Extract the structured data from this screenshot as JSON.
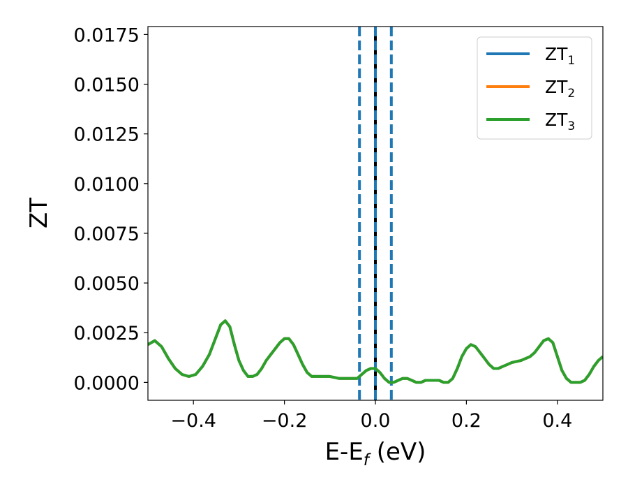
{
  "chart_data": {
    "type": "line",
    "xlabel": "E-E",
    "xlabel_subscript": "f",
    "xlabel_unit": " (eV)",
    "ylabel": "ZT",
    "xlim": [
      -0.5,
      0.5
    ],
    "ylim": [
      -0.0009,
      0.0179
    ],
    "x_ticks": [
      -0.4,
      -0.2,
      0.0,
      0.2,
      0.4
    ],
    "x_tick_labels": [
      "−0.4",
      "−0.2",
      "0.0",
      "0.2",
      "0.4"
    ],
    "y_ticks": [
      0.0,
      0.0025,
      0.005,
      0.0075,
      0.01,
      0.0125,
      0.015,
      0.0175
    ],
    "y_tick_labels": [
      "0.0000",
      "0.0025",
      "0.0050",
      "0.0075",
      "0.0100",
      "0.0125",
      "0.0150",
      "0.0175"
    ],
    "grid": false,
    "legend_position": "top-right",
    "vertical_lines": [
      {
        "x": -0.035,
        "style": "dashed",
        "color": "#1f77b4"
      },
      {
        "x": 0.0,
        "style": "solid",
        "color": "#000000"
      },
      {
        "x": 0.0,
        "style": "dashed",
        "color": "#1f77b4"
      },
      {
        "x": 0.035,
        "style": "dashed",
        "color": "#1f77b4"
      }
    ],
    "series": [
      {
        "name": "ZT",
        "subscript": "1",
        "color": "#1f77b4",
        "x": [
          -0.5,
          -0.485,
          -0.47,
          -0.455,
          -0.44,
          -0.425,
          -0.41,
          -0.395,
          -0.38,
          -0.365,
          -0.35,
          -0.34,
          -0.33,
          -0.32,
          -0.31,
          -0.3,
          -0.29,
          -0.28,
          -0.27,
          -0.26,
          -0.25,
          -0.24,
          -0.23,
          -0.22,
          -0.21,
          -0.2,
          -0.19,
          -0.18,
          -0.17,
          -0.16,
          -0.15,
          -0.14,
          -0.13,
          -0.12,
          -0.1,
          -0.08,
          -0.06,
          -0.04,
          -0.03,
          -0.02,
          -0.01,
          0.0,
          0.01,
          0.02,
          0.03,
          0.04,
          0.05,
          0.06,
          0.07,
          0.08,
          0.09,
          0.1,
          0.11,
          0.12,
          0.13,
          0.14,
          0.15,
          0.16,
          0.17,
          0.18,
          0.19,
          0.2,
          0.21,
          0.22,
          0.23,
          0.24,
          0.25,
          0.26,
          0.27,
          0.28,
          0.29,
          0.3,
          0.32,
          0.34,
          0.35,
          0.36,
          0.37,
          0.38,
          0.39,
          0.4,
          0.41,
          0.42,
          0.43,
          0.44,
          0.45,
          0.46,
          0.47,
          0.48,
          0.49,
          0.5
        ],
        "y": [
          0.0019,
          0.0021,
          0.0018,
          0.0012,
          0.0007,
          0.0004,
          0.0003,
          0.0004,
          0.0008,
          0.0014,
          0.0023,
          0.0029,
          0.0031,
          0.0028,
          0.0019,
          0.0011,
          0.0006,
          0.0003,
          0.0003,
          0.0004,
          0.0007,
          0.0011,
          0.0014,
          0.0017,
          0.002,
          0.0022,
          0.0022,
          0.0019,
          0.0014,
          0.0009,
          0.0005,
          0.0003,
          0.0003,
          0.0003,
          0.0003,
          0.0002,
          0.0002,
          0.0002,
          0.0004,
          0.0006,
          0.0007,
          0.0007,
          0.0005,
          0.0002,
          0.0,
          0.0,
          0.0001,
          0.0002,
          0.0002,
          0.0001,
          0.0,
          0.0,
          0.0001,
          0.0001,
          0.0001,
          0.0001,
          0.0,
          0.0,
          0.0002,
          0.0007,
          0.0013,
          0.0017,
          0.0019,
          0.0018,
          0.0015,
          0.0012,
          0.0009,
          0.0007,
          0.0007,
          0.0008,
          0.0009,
          0.001,
          0.0011,
          0.0013,
          0.0015,
          0.0018,
          0.0021,
          0.0022,
          0.002,
          0.0013,
          0.0006,
          0.0002,
          0.0,
          0.0,
          0.0,
          0.0001,
          0.0004,
          0.0008,
          0.0011,
          0.0013
        ]
      },
      {
        "name": "ZT",
        "subscript": "2",
        "color": "#ff7f0e",
        "x": [
          -0.5,
          -0.485,
          -0.47,
          -0.455,
          -0.44,
          -0.425,
          -0.41,
          -0.395,
          -0.38,
          -0.365,
          -0.35,
          -0.34,
          -0.33,
          -0.32,
          -0.31,
          -0.3,
          -0.29,
          -0.28,
          -0.27,
          -0.26,
          -0.25,
          -0.24,
          -0.23,
          -0.22,
          -0.21,
          -0.2,
          -0.19,
          -0.18,
          -0.17,
          -0.16,
          -0.15,
          -0.14,
          -0.13,
          -0.12,
          -0.1,
          -0.08,
          -0.06,
          -0.04,
          -0.03,
          -0.02,
          -0.01,
          0.0,
          0.01,
          0.02,
          0.03,
          0.04,
          0.05,
          0.06,
          0.07,
          0.08,
          0.09,
          0.1,
          0.11,
          0.12,
          0.13,
          0.14,
          0.15,
          0.16,
          0.17,
          0.18,
          0.19,
          0.2,
          0.21,
          0.22,
          0.23,
          0.24,
          0.25,
          0.26,
          0.27,
          0.28,
          0.29,
          0.3,
          0.32,
          0.34,
          0.35,
          0.36,
          0.37,
          0.38,
          0.39,
          0.4,
          0.41,
          0.42,
          0.43,
          0.44,
          0.45,
          0.46,
          0.47,
          0.48,
          0.49,
          0.5
        ],
        "y": [
          0.0019,
          0.0021,
          0.0018,
          0.0012,
          0.0007,
          0.0004,
          0.0003,
          0.0004,
          0.0008,
          0.0014,
          0.0023,
          0.0029,
          0.0031,
          0.0028,
          0.0019,
          0.0011,
          0.0006,
          0.0003,
          0.0003,
          0.0004,
          0.0007,
          0.0011,
          0.0014,
          0.0017,
          0.002,
          0.0022,
          0.0022,
          0.0019,
          0.0014,
          0.0009,
          0.0005,
          0.0003,
          0.0003,
          0.0003,
          0.0003,
          0.0002,
          0.0002,
          0.0002,
          0.0004,
          0.0006,
          0.0007,
          0.0007,
          0.0005,
          0.0002,
          0.0,
          0.0,
          0.0001,
          0.0002,
          0.0002,
          0.0001,
          0.0,
          0.0,
          0.0001,
          0.0001,
          0.0001,
          0.0001,
          0.0,
          0.0,
          0.0002,
          0.0007,
          0.0013,
          0.0017,
          0.0019,
          0.0018,
          0.0015,
          0.0012,
          0.0009,
          0.0007,
          0.0007,
          0.0008,
          0.0009,
          0.001,
          0.0011,
          0.0013,
          0.0015,
          0.0018,
          0.0021,
          0.0022,
          0.002,
          0.0013,
          0.0006,
          0.0002,
          0.0,
          0.0,
          0.0,
          0.0001,
          0.0004,
          0.0008,
          0.0011,
          0.0013
        ]
      },
      {
        "name": "ZT",
        "subscript": "3",
        "color": "#2ca02c",
        "x": [
          -0.5,
          -0.485,
          -0.47,
          -0.455,
          -0.44,
          -0.425,
          -0.41,
          -0.395,
          -0.38,
          -0.365,
          -0.35,
          -0.34,
          -0.33,
          -0.32,
          -0.31,
          -0.3,
          -0.29,
          -0.28,
          -0.27,
          -0.26,
          -0.25,
          -0.24,
          -0.23,
          -0.22,
          -0.21,
          -0.2,
          -0.19,
          -0.18,
          -0.17,
          -0.16,
          -0.15,
          -0.14,
          -0.13,
          -0.12,
          -0.1,
          -0.08,
          -0.06,
          -0.04,
          -0.03,
          -0.02,
          -0.01,
          0.0,
          0.01,
          0.02,
          0.03,
          0.04,
          0.05,
          0.06,
          0.07,
          0.08,
          0.09,
          0.1,
          0.11,
          0.12,
          0.13,
          0.14,
          0.15,
          0.16,
          0.17,
          0.18,
          0.19,
          0.2,
          0.21,
          0.22,
          0.23,
          0.24,
          0.25,
          0.26,
          0.27,
          0.28,
          0.29,
          0.3,
          0.32,
          0.34,
          0.35,
          0.36,
          0.37,
          0.38,
          0.39,
          0.4,
          0.41,
          0.42,
          0.43,
          0.44,
          0.45,
          0.46,
          0.47,
          0.48,
          0.49,
          0.5
        ],
        "y": [
          0.0019,
          0.0021,
          0.0018,
          0.0012,
          0.0007,
          0.0004,
          0.0003,
          0.0004,
          0.0008,
          0.0014,
          0.0023,
          0.0029,
          0.0031,
          0.0028,
          0.0019,
          0.0011,
          0.0006,
          0.0003,
          0.0003,
          0.0004,
          0.0007,
          0.0011,
          0.0014,
          0.0017,
          0.002,
          0.0022,
          0.0022,
          0.0019,
          0.0014,
          0.0009,
          0.0005,
          0.0003,
          0.0003,
          0.0003,
          0.0003,
          0.0002,
          0.0002,
          0.0002,
          0.0004,
          0.0006,
          0.0007,
          0.0007,
          0.0005,
          0.0002,
          0.0,
          0.0,
          0.0001,
          0.0002,
          0.0002,
          0.0001,
          0.0,
          0.0,
          0.0001,
          0.0001,
          0.0001,
          0.0001,
          0.0,
          0.0,
          0.0002,
          0.0007,
          0.0013,
          0.0017,
          0.0019,
          0.0018,
          0.0015,
          0.0012,
          0.0009,
          0.0007,
          0.0007,
          0.0008,
          0.0009,
          0.001,
          0.0011,
          0.0013,
          0.0015,
          0.0018,
          0.0021,
          0.0022,
          0.002,
          0.0013,
          0.0006,
          0.0002,
          0.0,
          0.0,
          0.0,
          0.0001,
          0.0004,
          0.0008,
          0.0011,
          0.0013
        ]
      }
    ]
  }
}
